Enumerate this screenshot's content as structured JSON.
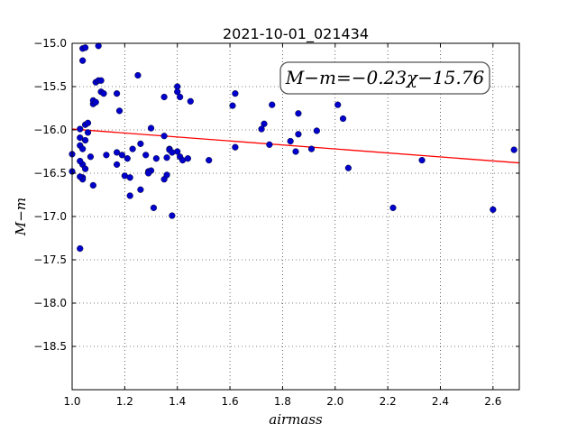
{
  "chart_data": {
    "type": "scatter",
    "title": "2021-10-01_021434",
    "xlabel": "airmass",
    "ylabel": "M−m",
    "xlim": [
      1.0,
      2.7
    ],
    "ylim": [
      -15.0,
      -19.0
    ],
    "y_inverted": true,
    "xticks": [
      "1.0",
      "1.2",
      "1.4",
      "1.6",
      "1.8",
      "2.0",
      "2.2",
      "2.4",
      "2.6"
    ],
    "yticks": [
      "−15.0",
      "−15.5",
      "−16.0",
      "−16.5",
      "−17.0",
      "−17.5",
      "−18.0",
      "−18.5"
    ],
    "grid": true,
    "annotation": "M−m=−0.23χ−15.76",
    "fit_line": {
      "slope": -0.23,
      "intercept": -15.76,
      "color": "#ff0000"
    },
    "marker_color": "#0000cc",
    "points": {
      "x": [
        1.0,
        1.0,
        1.03,
        1.03,
        1.03,
        1.04,
        1.04,
        1.05,
        1.05,
        1.03,
        1.04,
        1.05,
        1.04,
        1.05,
        1.06,
        1.06,
        1.07,
        1.08,
        1.08,
        1.09,
        1.09,
        1.1,
        1.11,
        1.11,
        1.1,
        1.12,
        1.13,
        1.17,
        1.18,
        1.17,
        1.17,
        1.19,
        1.21,
        1.2,
        1.22,
        1.25,
        1.23,
        1.26,
        1.28,
        1.3,
        1.29,
        1.3,
        1.29,
        1.32,
        1.35,
        1.35,
        1.36,
        1.37,
        1.37,
        1.38,
        1.4,
        1.4,
        1.41,
        1.4,
        1.41,
        1.42,
        1.44,
        1.45,
        1.35,
        1.36,
        1.38,
        1.31,
        1.26,
        1.22,
        1.04,
        1.04,
        1.03,
        1.03,
        1.08,
        1.52,
        1.61,
        1.62,
        1.62,
        1.72,
        1.73,
        1.75,
        1.76,
        1.83,
        1.85,
        1.86,
        1.86,
        1.91,
        1.93,
        2.01,
        2.03,
        2.05,
        2.22,
        2.33,
        2.6,
        2.68
      ],
      "y": [
        -16.28,
        -16.48,
        -15.99,
        -16.09,
        -16.18,
        -16.22,
        -16.4,
        -16.45,
        -15.94,
        -16.36,
        -15.06,
        -15.05,
        -15.2,
        -16.12,
        -15.92,
        -16.03,
        -16.31,
        -15.7,
        -15.66,
        -15.45,
        -15.68,
        -15.43,
        -15.56,
        -15.43,
        -15.03,
        -15.58,
        -16.29,
        -15.58,
        -15.78,
        -16.26,
        -16.4,
        -16.29,
        -16.33,
        -16.53,
        -16.76,
        -15.37,
        -16.22,
        -16.16,
        -16.29,
        -15.98,
        -16.48,
        -16.47,
        -16.5,
        -16.33,
        -15.62,
        -16.07,
        -16.32,
        -16.22,
        -16.23,
        -16.99,
        -15.5,
        -15.56,
        -15.62,
        -16.25,
        -16.31,
        -16.35,
        -16.33,
        -15.67,
        -16.57,
        -16.52,
        -16.26,
        -16.9,
        -16.69,
        -16.55,
        -16.55,
        -16.57,
        -16.54,
        -17.37,
        -16.64,
        -16.35,
        -15.72,
        -15.58,
        -16.2,
        -15.99,
        -15.93,
        -16.17,
        -15.71,
        -16.13,
        -16.25,
        -15.81,
        -16.05,
        -16.22,
        -16.01,
        -15.71,
        -15.87,
        -16.44,
        -16.9,
        -16.35,
        -16.92,
        -16.23
      ]
    }
  }
}
